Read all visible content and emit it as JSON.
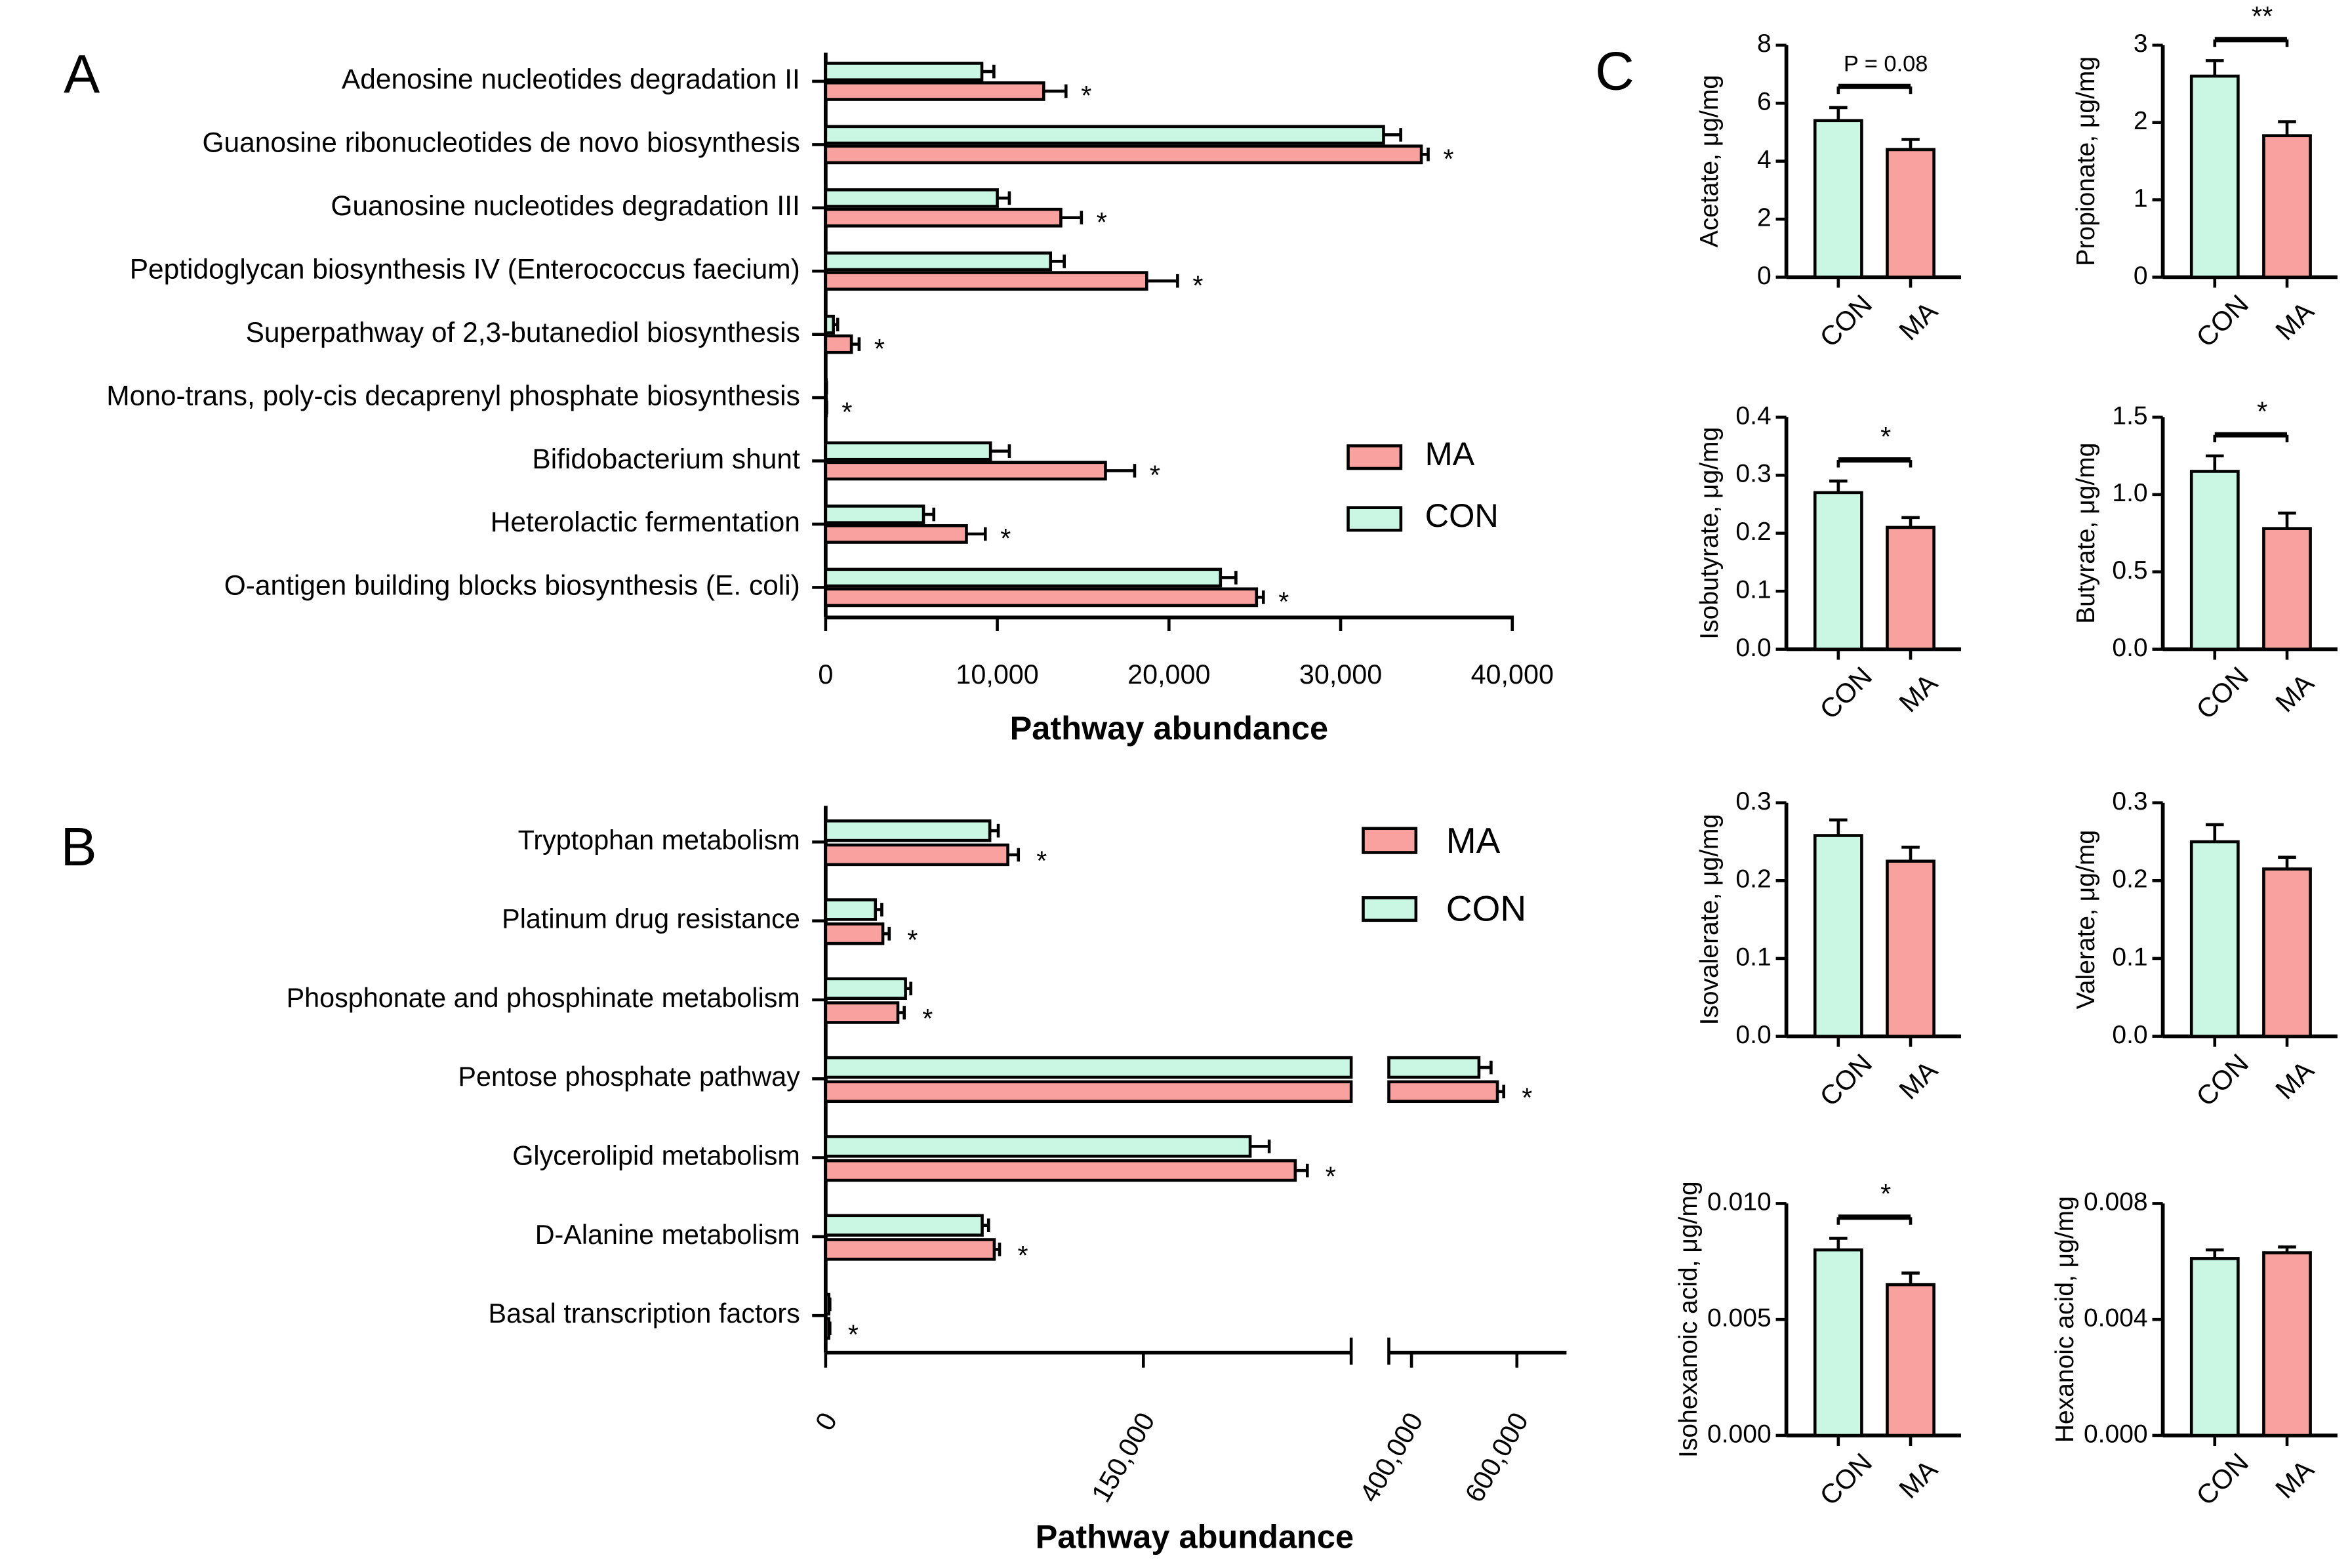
{
  "colors": {
    "CON": "#c9f7e4",
    "MA": "#f9a19f",
    "stroke": "#000000"
  },
  "panel_letters": {
    "A": "A",
    "B": "B",
    "C": "C"
  },
  "chart_data": [
    {
      "id": "A",
      "type": "bar",
      "orientation": "horizontal",
      "categories": [
        "Adenosine nucleotides degradation II",
        "Guanosine ribonucleotides de novo biosynthesis",
        "Guanosine nucleotides degradation III",
        "Peptidoglycan biosynthesis IV (Enterococcus faecium)",
        "Superpathway of 2,3-butanediol biosynthesis",
        "Mono-trans, poly-cis decaprenyl phosphate biosynthesis",
        "Bifidobacterium shunt",
        "Heterolactic fermentation",
        "O-antigen building blocks biosynthesis (E. coli)"
      ],
      "series": [
        {
          "name": "CON",
          "values": [
            9100,
            32500,
            10000,
            13100,
            450,
            30,
            9600,
            5700,
            23000
          ],
          "errors": [
            700,
            1000,
            700,
            800,
            250,
            20,
            1100,
            600,
            900
          ]
        },
        {
          "name": "MA",
          "values": [
            12700,
            34700,
            13700,
            18700,
            1500,
            40,
            16300,
            8200,
            25100
          ],
          "errors": [
            1300,
            400,
            1200,
            1800,
            450,
            20,
            1700,
            1100,
            400
          ]
        }
      ],
      "significance": [
        "*",
        "*",
        "*",
        "*",
        "*",
        "*",
        "*",
        "*",
        "*"
      ],
      "xlabel": "Pathway abundance",
      "xlim": [
        0,
        40000
      ],
      "xticks": [
        0,
        10000,
        20000,
        30000,
        40000
      ],
      "xtick_labels": [
        "0",
        "10,000",
        "20,000",
        "30,000",
        "40,000"
      ],
      "legend": [
        "MA",
        "CON"
      ],
      "legend_position": "right"
    },
    {
      "id": "B",
      "type": "bar",
      "orientation": "horizontal",
      "axis_break": [
        248000,
        357000
      ],
      "categories": [
        "Tryptophan metabolism",
        "Platinum drug resistance",
        "Phosphonate and phosphinate metabolism",
        "Pentose phosphate pathway",
        "Glycerolipid metabolism",
        "D-Alanine metabolism",
        "Basal transcription factors"
      ],
      "series": [
        {
          "name": "CON",
          "values": [
            77500,
            23500,
            37700,
            528000,
            200400,
            73900,
            1500
          ],
          "errors": [
            4000,
            3000,
            2500,
            23000,
            9000,
            3000,
            500
          ]
        },
        {
          "name": "MA",
          "values": [
            86000,
            27000,
            34100,
            563000,
            221700,
            79600,
            1500
          ],
          "errors": [
            5000,
            3000,
            3000,
            12000,
            5700,
            2500,
            500
          ]
        }
      ],
      "significance": [
        "*",
        "*",
        "*",
        "*",
        "*",
        "*",
        "*"
      ],
      "xlabel": "Pathway abundance",
      "xticks": [
        0,
        150000,
        400000,
        600000
      ],
      "xtick_labels": [
        "0",
        "150,000",
        "400,000",
        "600,000"
      ],
      "legend": [
        "MA",
        "CON"
      ],
      "legend_position": "top-right"
    },
    {
      "id": "C1",
      "type": "bar",
      "categories": [
        "CON",
        "MA"
      ],
      "values": [
        5.4,
        4.4
      ],
      "errors": [
        0.45,
        0.35
      ],
      "ylabel": "Acetate, μg/mg",
      "ylim": [
        0,
        8
      ],
      "yticks": [
        "0",
        "2",
        "4",
        "6",
        "8"
      ],
      "sig": "P = 0.08"
    },
    {
      "id": "C2",
      "type": "bar",
      "categories": [
        "CON",
        "MA"
      ],
      "values": [
        2.6,
        1.83
      ],
      "errors": [
        0.2,
        0.18
      ],
      "ylabel": "Propionate, μg/mg",
      "ylim": [
        0,
        3
      ],
      "yticks": [
        "0",
        "1",
        "2",
        "3"
      ],
      "sig": "**"
    },
    {
      "id": "C3",
      "type": "bar",
      "categories": [
        "CON",
        "MA"
      ],
      "values": [
        0.27,
        0.21
      ],
      "errors": [
        0.02,
        0.017
      ],
      "ylabel": "Isobutyrate, μg/mg",
      "ylim": [
        0,
        0.4
      ],
      "yticks": [
        "0.0",
        "0.1",
        "0.2",
        "0.3",
        "0.4"
      ],
      "sig": "*"
    },
    {
      "id": "C4",
      "type": "bar",
      "categories": [
        "CON",
        "MA"
      ],
      "values": [
        1.15,
        0.78
      ],
      "errors": [
        0.1,
        0.1
      ],
      "ylabel": "Butyrate, μg/mg",
      "ylim": [
        0,
        1.5
      ],
      "yticks": [
        "0.0",
        "0.5",
        "1.0",
        "1.5"
      ],
      "sig": "*"
    },
    {
      "id": "C5",
      "type": "bar",
      "categories": [
        "CON",
        "MA"
      ],
      "values": [
        0.258,
        0.225
      ],
      "errors": [
        0.02,
        0.018
      ],
      "ylabel": "Isovalerate, μg/mg",
      "ylim": [
        0,
        0.3
      ],
      "yticks": [
        "0.0",
        "0.1",
        "0.2",
        "0.3"
      ],
      "sig": ""
    },
    {
      "id": "C6",
      "type": "bar",
      "categories": [
        "CON",
        "MA"
      ],
      "values": [
        0.25,
        0.215
      ],
      "errors": [
        0.022,
        0.015
      ],
      "ylabel": "Valerate, μg/mg",
      "ylim": [
        0,
        0.3
      ],
      "yticks": [
        "0.0",
        "0.1",
        "0.2",
        "0.3"
      ],
      "sig": ""
    },
    {
      "id": "C7",
      "type": "bar",
      "categories": [
        "CON",
        "MA"
      ],
      "values": [
        0.008,
        0.0065
      ],
      "errors": [
        0.0005,
        0.0005
      ],
      "ylabel": "Isohexanoic acid, μg/mg",
      "ylim": [
        0,
        0.01
      ],
      "yticks": [
        "0.000",
        "0.005",
        "0.010"
      ],
      "sig": "*"
    },
    {
      "id": "C8",
      "type": "bar",
      "categories": [
        "CON",
        "MA"
      ],
      "values": [
        0.0061,
        0.0063
      ],
      "errors": [
        0.0003,
        0.0002
      ],
      "ylabel": "Hexanoic acid, μg/mg",
      "ylim": [
        0,
        0.008
      ],
      "yticks": [
        "0.000",
        "0.004",
        "0.008"
      ],
      "sig": ""
    }
  ]
}
